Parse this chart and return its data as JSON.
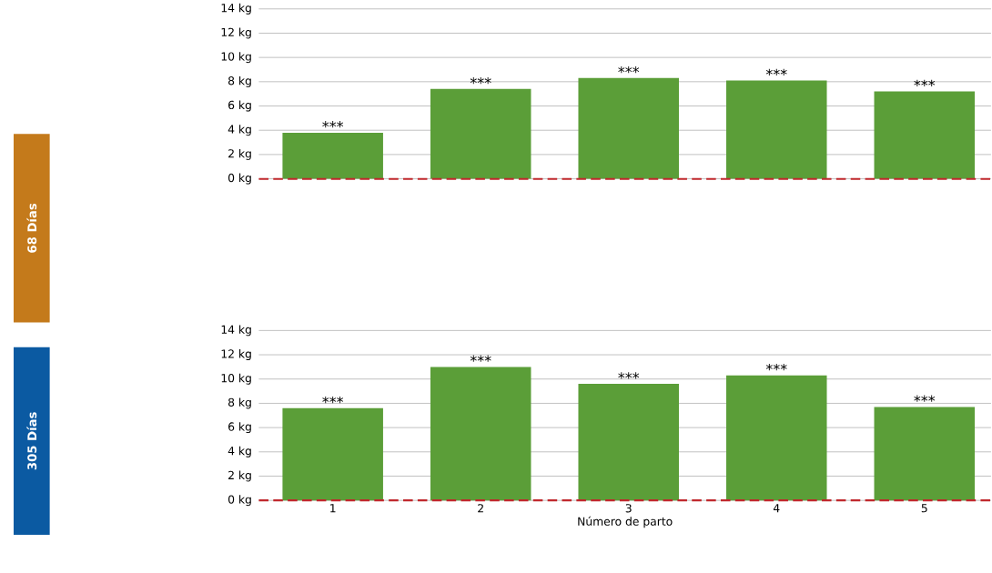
{
  "chart_data": [
    {
      "type": "bar",
      "ylabel": "68 Días",
      "categories": [
        "1",
        "2",
        "3",
        "4",
        "5"
      ],
      "values": [
        3.8,
        7.4,
        8.3,
        8.1,
        7.2
      ],
      "color": "#5b9e38",
      "ylim": [
        0,
        14
      ],
      "yticks": [
        {
          "value": 0,
          "label": "0 kg"
        },
        {
          "value": 2,
          "label": "2 kg"
        },
        {
          "value": 4,
          "label": "4 kg"
        },
        {
          "value": 6,
          "label": "6 kg"
        },
        {
          "value": 8,
          "label": "8 kg"
        },
        {
          "value": 10,
          "label": "10 kg"
        },
        {
          "value": 12,
          "label": "12 kg"
        },
        {
          "value": 14,
          "label": "14 kg"
        }
      ],
      "grid": "y",
      "tick_labels": "y",
      "ref_lines": [
        {
          "axis": "y",
          "value": 0,
          "color": "#c0282d",
          "line_style": "dashed"
        }
      ],
      "annotations": [
        {
          "text": "***",
          "x": "1",
          "y": 3.8
        },
        {
          "text": "***",
          "x": "2",
          "y": 7.4
        },
        {
          "text": "***",
          "x": "3",
          "y": 8.3
        },
        {
          "text": "***",
          "x": "4",
          "y": 8.1
        },
        {
          "text": "***",
          "x": "5",
          "y": 7.2
        }
      ]
    },
    {
      "type": "bar",
      "ylabel": "305 Días",
      "xlabel": "Número de parto",
      "categories": [
        "1",
        "2",
        "3",
        "4",
        "5"
      ],
      "values": [
        7.6,
        11.0,
        9.6,
        10.3,
        7.7
      ],
      "color": "#5b9e38",
      "ylim": [
        0,
        14
      ],
      "yticks": [
        {
          "value": 0,
          "label": "0 kg"
        },
        {
          "value": 2,
          "label": "2 kg"
        },
        {
          "value": 4,
          "label": "4 kg"
        },
        {
          "value": 6,
          "label": "6 kg"
        },
        {
          "value": 8,
          "label": "8 kg"
        },
        {
          "value": 10,
          "label": "10 kg"
        },
        {
          "value": 12,
          "label": "12 kg"
        },
        {
          "value": 14,
          "label": "14 kg"
        }
      ],
      "grid": "y",
      "ref_lines": [
        {
          "axis": "y",
          "value": 0,
          "color": "#c0282d",
          "line_style": "dashed"
        }
      ],
      "annotations": [
        {
          "text": "***",
          "x": "1",
          "y": 7.6
        },
        {
          "text": "***",
          "x": "2",
          "y": 11.0
        },
        {
          "text": "***",
          "x": "3",
          "y": 9.6
        },
        {
          "text": "***",
          "x": "4",
          "y": 10.3
        },
        {
          "text": "***",
          "x": "5",
          "y": 7.7
        }
      ]
    }
  ]
}
